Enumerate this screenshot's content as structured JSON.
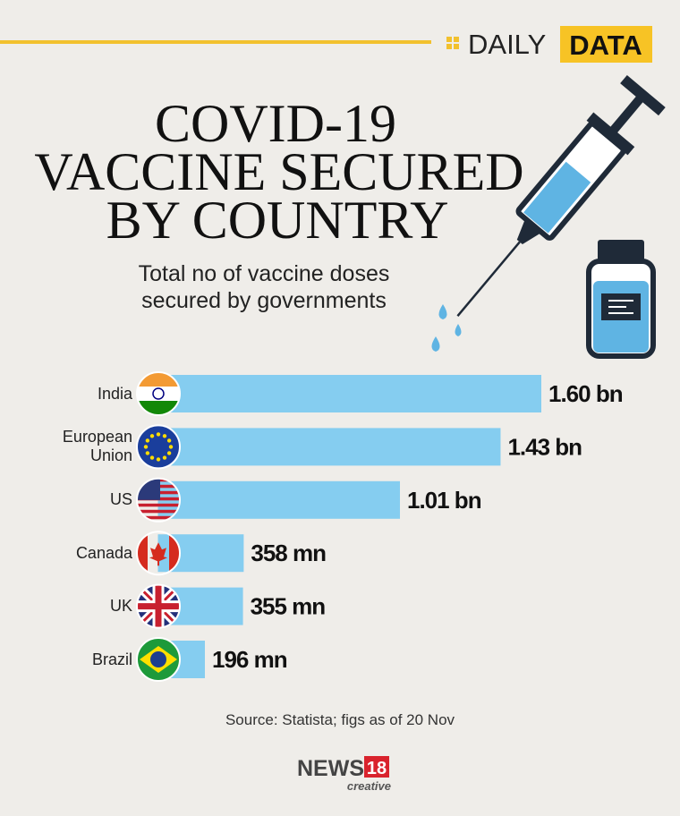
{
  "header": {
    "brand_light": "DAILY",
    "brand_bold": "DATA"
  },
  "chart_data": {
    "type": "bar",
    "orientation": "horizontal",
    "title": [
      "COVID-19",
      "VACCINE SECURED",
      "BY COUNTRY"
    ],
    "subtitle": [
      "Total no of vaccine doses",
      "secured by governments"
    ],
    "categories": [
      "India",
      "European Union",
      "US",
      "Canada",
      "UK",
      "Brazil"
    ],
    "values": [
      1600000000,
      1430000000,
      1010000000,
      358000000,
      355000000,
      196000000
    ],
    "value_labels": [
      "1.60 bn",
      "1.43 bn",
      "1.01 bn",
      "358 mn",
      "355 mn",
      "196 mn"
    ],
    "color": "#85cdf0"
  },
  "footer": {
    "source": "Source: Statista; figs as of 20 Nov",
    "logo": {
      "word": "NEWS",
      "number": "18",
      "tag": "creative"
    }
  }
}
